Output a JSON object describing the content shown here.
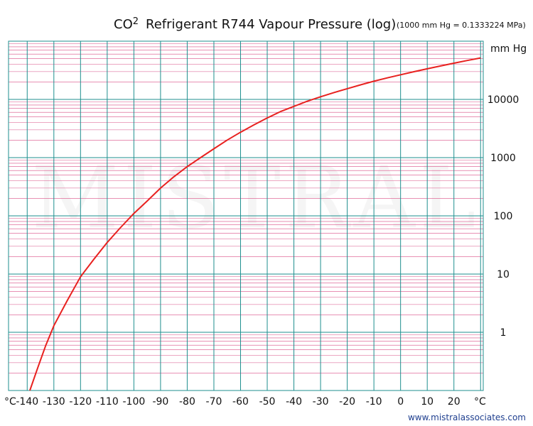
{
  "chart_data": {
    "type": "line",
    "title": "CO2  Refrigerant R744 Vapour Pressure  (log)",
    "title_main": "CO",
    "title_superscript": "2",
    "title_rest": "Refrigerant R744 Vapour Pressure  (log)",
    "subtitle": "(1000 mm Hg = 0.1333224 MPa)",
    "xlabel_left": "°C",
    "xlabel_right": "°C",
    "ylabel": "mm Hg",
    "x_ticks": [
      -140,
      -130,
      -120,
      -110,
      -100,
      -90,
      -80,
      -70,
      -60,
      -50,
      -40,
      -30,
      -20,
      -10,
      0,
      10,
      20
    ],
    "x_tick_labels": [
      "-140",
      "-130",
      "-120",
      "-110",
      "-100",
      "-90",
      "-80",
      "-70",
      "-60",
      "-50",
      "-40",
      "-30",
      "-20",
      "-10",
      "0",
      "10",
      "20"
    ],
    "y_ticks": [
      1,
      10,
      100,
      1000,
      10000
    ],
    "y_tick_labels": [
      "1",
      "10",
      "100",
      "1000",
      "10000"
    ],
    "xlim": [
      -147,
      31
    ],
    "ylim": [
      0.1,
      100000
    ],
    "y_scale": "log",
    "grid": true,
    "series": [
      {
        "color": "#e8211f",
        "x": [
          -139,
          -136,
          -133,
          -130,
          -125,
          -120,
          -115,
          -110,
          -105,
          -100,
          -95,
          -90,
          -85,
          -80,
          -75,
          -70,
          -65,
          -60,
          -55,
          -50,
          -45,
          -40,
          -35,
          -30,
          -25,
          -20,
          -15,
          -10,
          -5,
          0,
          5,
          10,
          15,
          20,
          25,
          30
        ],
        "y": [
          0.1,
          0.25,
          0.6,
          1.3,
          3.5,
          9,
          18,
          35,
          63,
          110,
          180,
          300,
          470,
          700,
          1000,
          1420,
          2000,
          2730,
          3650,
          4800,
          6180,
          7600,
          9300,
          11100,
          13100,
          15300,
          17800,
          20500,
          23400,
          26500,
          29900,
          33500,
          37500,
          41900,
          46600,
          51500
        ]
      }
    ],
    "watermark": "MISTRAL"
  },
  "footer": {
    "credit": "www.mistralassociates.com"
  },
  "colors": {
    "major_grid": "#1f8f8f",
    "minor_grid": "#d94f86",
    "curve": "#e8211f",
    "credit": "#1f3f8f"
  }
}
